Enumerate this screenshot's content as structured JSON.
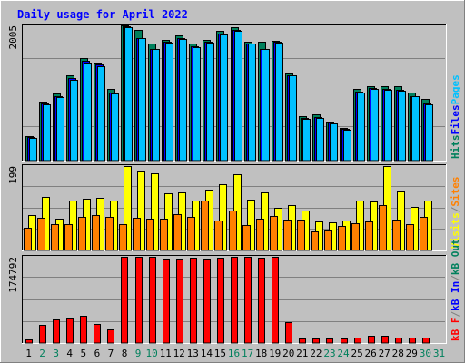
{
  "chart_data": {
    "type": "bar",
    "title": "Daily usage for April 2022",
    "days": [
      "1",
      "2",
      "3",
      "4",
      "5",
      "6",
      "7",
      "8",
      "9",
      "10",
      "11",
      "12",
      "13",
      "14",
      "15",
      "16",
      "17",
      "18",
      "19",
      "20",
      "21",
      "22",
      "23",
      "24",
      "25",
      "26",
      "27",
      "28",
      "29",
      "30",
      "31"
    ],
    "weekend_days": [
      "2",
      "3",
      "9",
      "10",
      "16",
      "17",
      "23",
      "24",
      "30",
      "31"
    ],
    "panels": [
      {
        "id": "hits-files-pages",
        "max_label": "2005",
        "ymax": 2005,
        "series": [
          {
            "name": "Hits",
            "color": "#00805c",
            "values": [
              370,
              880,
              1000,
              1260,
              1520,
              1460,
              1060,
              2005,
              1940,
              1730,
              1790,
              1860,
              1740,
              1790,
              1920,
              1980,
              1760,
              1760,
              1780,
              1310,
              660,
              680,
              580,
              490,
              1060,
              1100,
              1100,
              1100,
              1010,
              910,
              0
            ]
          },
          {
            "name": "Files",
            "color": "#0000ff",
            "values": [
              350,
              850,
              960,
              1220,
              1480,
              1420,
              1010,
              1990,
              1820,
              1660,
              1760,
              1810,
              1690,
              1760,
              1880,
              1940,
              1740,
              1660,
              1760,
              1270,
              630,
              640,
              560,
              470,
              1020,
              1070,
              1060,
              1050,
              960,
              850,
              0
            ]
          },
          {
            "name": "Pages",
            "color": "#00c0ff",
            "values": [
              340,
              840,
              940,
              1200,
              1460,
              1400,
              1000,
              1980,
              1810,
              1650,
              1750,
              1800,
              1680,
              1750,
              1870,
              1930,
              1730,
              1650,
              1750,
              1260,
              620,
              630,
              550,
              460,
              1010,
              1060,
              1050,
              1040,
              950,
              840,
              0
            ]
          }
        ],
        "legend": [
          {
            "text": "Hits",
            "color": "#00805c"
          },
          {
            "text": "Files",
            "color": "#0000ff"
          },
          {
            "text": "Pages",
            "color": "#00c0ff"
          }
        ]
      },
      {
        "id": "visits-sites",
        "max_label": "199",
        "ymax": 199,
        "series": [
          {
            "name": "Visits",
            "color": "#ffff00",
            "values": [
              84,
              126,
              74,
              118,
              123,
              124,
              118,
              199,
              188,
              182,
              135,
              138,
              117,
              143,
              156,
              180,
              119,
              136,
              100,
              106,
              95,
              69,
              67,
              71,
              118,
              116,
              199,
              139,
              103,
              118,
              0
            ]
          },
          {
            "name": "Sites",
            "color": "#ff8000",
            "values": [
              53,
              76,
              61,
              63,
              79,
              83,
              80,
              63,
              76,
              75,
              75,
              85,
              79,
              117,
              71,
              95,
              59,
              75,
              82,
              72,
              73,
              45,
              49,
              58,
              64,
              68,
              108,
              72,
              61,
              80,
              0
            ]
          }
        ],
        "legend": [
          {
            "text": "Visits",
            "color": "#ffff00"
          },
          {
            "text": "/",
            "color": "#808080"
          },
          {
            "text": "Sites",
            "color": "#ff8000"
          }
        ]
      },
      {
        "id": "kbytes",
        "max_label": "174792",
        "ymax": 174792,
        "series": [
          {
            "name": "kB F",
            "color": "#ff0000",
            "values": [
              6700,
              36000,
              48500,
              52000,
              55500,
              38800,
              28500,
              174792,
              174792,
              174792,
              171000,
              171000,
              172500,
              171000,
              172500,
              174792,
              174792,
              172500,
              174792,
              41600,
              8700,
              8700,
              8700,
              8700,
              10600,
              13800,
              13800,
              10600,
              10600,
              10600,
              0
            ]
          }
        ],
        "legend": [
          {
            "text": "kB F",
            "color": "#ff0000"
          },
          {
            "text": "/",
            "color": "#808080"
          },
          {
            "text": "kB In",
            "color": "#0000ff"
          },
          {
            "text": "/",
            "color": "#808080"
          },
          {
            "text": "kB Out",
            "color": "#00805c"
          }
        ]
      }
    ]
  }
}
